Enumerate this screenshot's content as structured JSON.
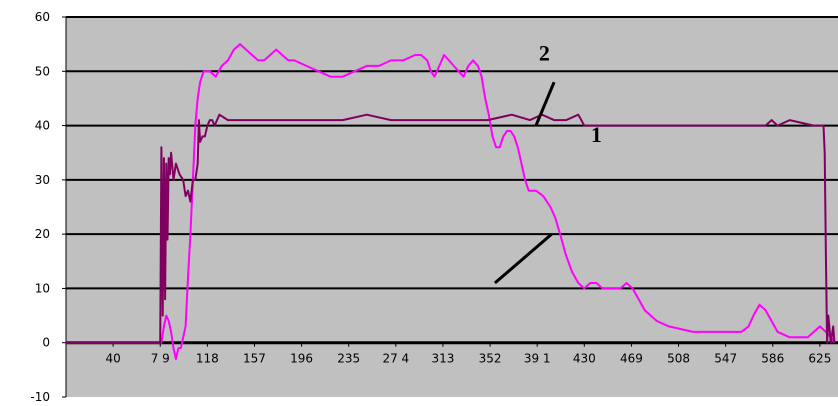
{
  "chart_data": {
    "type": "line",
    "title": "",
    "xlabel": "",
    "ylabel": "",
    "ylim": [
      -10,
      60
    ],
    "xlim": [
      1,
      640
    ],
    "yticks": [
      -10,
      0,
      10,
      20,
      30,
      40,
      50,
      60
    ],
    "ytick_labels": [
      "-10",
      "0",
      "10",
      "20",
      "30",
      "40",
      "50",
      "60"
    ],
    "xticks": [
      40,
      79,
      118,
      157,
      196,
      235,
      274,
      313,
      352,
      391,
      430,
      469,
      508,
      547,
      586,
      625
    ],
    "xtick_labels": [
      "40",
      "7 9",
      "118",
      "157",
      "196",
      "235",
      "27 4",
      "313",
      "352",
      "39 1",
      "430",
      "469",
      "508",
      "547",
      "586",
      "625"
    ],
    "grid": "horizontal",
    "legend": "none",
    "plot_background": "#c0c0c0",
    "series": [
      {
        "label": "1",
        "color": "#800060",
        "points": [
          [
            1,
            0
          ],
          [
            74,
            0
          ],
          [
            79,
            0
          ],
          [
            80,
            36
          ],
          [
            81,
            5
          ],
          [
            82,
            34
          ],
          [
            83,
            8
          ],
          [
            84,
            33
          ],
          [
            85,
            19
          ],
          [
            86,
            34
          ],
          [
            87,
            31
          ],
          [
            88,
            35
          ],
          [
            90,
            30
          ],
          [
            92,
            33
          ],
          [
            95,
            31
          ],
          [
            98,
            30
          ],
          [
            100,
            27
          ],
          [
            102,
            28
          ],
          [
            104,
            26
          ],
          [
            106,
            30
          ],
          [
            108,
            30
          ],
          [
            110,
            33
          ],
          [
            111,
            41
          ],
          [
            112,
            37
          ],
          [
            114,
            38
          ],
          [
            116,
            38
          ],
          [
            118,
            40
          ],
          [
            120,
            41
          ],
          [
            122,
            41
          ],
          [
            124,
            40
          ],
          [
            128,
            42
          ],
          [
            135,
            41
          ],
          [
            150,
            41
          ],
          [
            170,
            41
          ],
          [
            190,
            41
          ],
          [
            210,
            41
          ],
          [
            230,
            41
          ],
          [
            250,
            42
          ],
          [
            270,
            41
          ],
          [
            290,
            41
          ],
          [
            310,
            41
          ],
          [
            330,
            41
          ],
          [
            350,
            41
          ],
          [
            370,
            42
          ],
          [
            385,
            41
          ],
          [
            395,
            42
          ],
          [
            405,
            41
          ],
          [
            415,
            41
          ],
          [
            425,
            42
          ],
          [
            430,
            40
          ],
          [
            450,
            40
          ],
          [
            470,
            40
          ],
          [
            490,
            40
          ],
          [
            510,
            40
          ],
          [
            530,
            40
          ],
          [
            550,
            40
          ],
          [
            570,
            40
          ],
          [
            580,
            40
          ],
          [
            585,
            41
          ],
          [
            590,
            40
          ],
          [
            600,
            41
          ],
          [
            620,
            40
          ],
          [
            628,
            40
          ],
          [
            629,
            35
          ],
          [
            630,
            16
          ],
          [
            631,
            0
          ],
          [
            632,
            5
          ],
          [
            634,
            0
          ],
          [
            636,
            3
          ],
          [
            637,
            0
          ]
        ]
      },
      {
        "label": "2",
        "color": "#ff00ff",
        "points": [
          [
            1,
            0
          ],
          [
            79,
            0
          ],
          [
            80,
            0
          ],
          [
            82,
            3
          ],
          [
            84,
            5
          ],
          [
            86,
            4
          ],
          [
            88,
            2
          ],
          [
            90,
            -1
          ],
          [
            92,
            -3
          ],
          [
            94,
            -1
          ],
          [
            96,
            -1
          ],
          [
            98,
            1
          ],
          [
            100,
            3
          ],
          [
            102,
            12
          ],
          [
            104,
            20
          ],
          [
            106,
            30
          ],
          [
            108,
            40
          ],
          [
            110,
            45
          ],
          [
            112,
            48
          ],
          [
            115,
            50
          ],
          [
            120,
            50
          ],
          [
            125,
            49
          ],
          [
            130,
            51
          ],
          [
            135,
            52
          ],
          [
            140,
            54
          ],
          [
            145,
            55
          ],
          [
            150,
            54
          ],
          [
            155,
            53
          ],
          [
            160,
            52
          ],
          [
            165,
            52
          ],
          [
            170,
            53
          ],
          [
            175,
            54
          ],
          [
            180,
            53
          ],
          [
            185,
            52
          ],
          [
            190,
            52
          ],
          [
            200,
            51
          ],
          [
            210,
            50
          ],
          [
            220,
            49
          ],
          [
            230,
            49
          ],
          [
            240,
            50
          ],
          [
            250,
            51
          ],
          [
            260,
            51
          ],
          [
            270,
            52
          ],
          [
            280,
            52
          ],
          [
            290,
            53
          ],
          [
            295,
            53
          ],
          [
            300,
            52
          ],
          [
            303,
            50
          ],
          [
            306,
            49
          ],
          [
            310,
            51
          ],
          [
            314,
            53
          ],
          [
            318,
            52
          ],
          [
            322,
            51
          ],
          [
            326,
            50
          ],
          [
            330,
            49
          ],
          [
            334,
            51
          ],
          [
            338,
            52
          ],
          [
            342,
            51
          ],
          [
            345,
            49
          ],
          [
            348,
            45
          ],
          [
            351,
            42
          ],
          [
            354,
            38
          ],
          [
            357,
            36
          ],
          [
            360,
            36
          ],
          [
            363,
            38
          ],
          [
            366,
            39
          ],
          [
            369,
            39
          ],
          [
            372,
            38
          ],
          [
            375,
            36
          ],
          [
            378,
            33
          ],
          [
            381,
            30
          ],
          [
            384,
            28
          ],
          [
            390,
            28
          ],
          [
            396,
            27
          ],
          [
            402,
            25
          ],
          [
            406,
            23
          ],
          [
            410,
            20
          ],
          [
            415,
            16
          ],
          [
            420,
            13
          ],
          [
            425,
            11
          ],
          [
            430,
            10
          ],
          [
            435,
            11
          ],
          [
            440,
            11
          ],
          [
            445,
            10
          ],
          [
            455,
            10
          ],
          [
            460,
            10
          ],
          [
            465,
            11
          ],
          [
            470,
            10
          ],
          [
            475,
            8
          ],
          [
            480,
            6
          ],
          [
            490,
            4
          ],
          [
            500,
            3
          ],
          [
            520,
            2
          ],
          [
            540,
            2
          ],
          [
            560,
            2
          ],
          [
            566,
            3
          ],
          [
            570,
            5
          ],
          [
            575,
            7
          ],
          [
            580,
            6
          ],
          [
            585,
            4
          ],
          [
            590,
            2
          ],
          [
            600,
            1
          ],
          [
            615,
            1
          ],
          [
            620,
            2
          ],
          [
            625,
            3
          ],
          [
            630,
            2
          ],
          [
            634,
            1
          ],
          [
            637,
            0
          ]
        ]
      }
    ],
    "annotations": [
      {
        "text": "2",
        "x": 397,
        "y": 52,
        "pointer": [
          [
            390,
            40
          ],
          [
            405,
            48
          ]
        ]
      },
      {
        "text": "1",
        "x": 440,
        "y": 37,
        "pointer": [
          [
            356,
            11
          ],
          [
            403,
            20
          ]
        ]
      }
    ]
  }
}
